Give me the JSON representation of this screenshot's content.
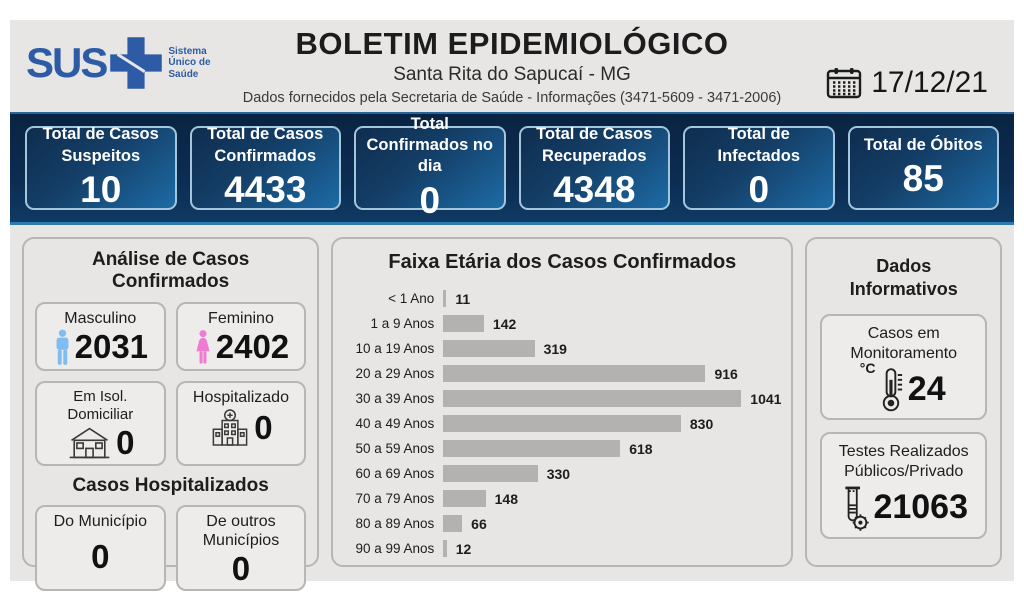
{
  "header": {
    "logo_text": "SUS",
    "logo_tagline": "Sistema Único de Saúde",
    "title": "BOLETIM EPIDEMIOLÓGICO",
    "subtitle": "Santa Rita do Sapucaí - MG",
    "info_line": "Dados fornecidos pela Secretaria de Saúde - Informações (3471-5609 - 3471-2006)",
    "date": "17/12/21"
  },
  "stats": [
    {
      "label": "Total de Casos Suspeitos",
      "value": "10"
    },
    {
      "label": "Total de Casos Confirmados",
      "value": "4433"
    },
    {
      "label": "Total Confirmados no dia",
      "value": "0"
    },
    {
      "label": "Total de Casos Recuperados",
      "value": "4348"
    },
    {
      "label": "Total de Infectados",
      "value": "0"
    },
    {
      "label": "Total de Óbitos",
      "value": "85"
    }
  ],
  "analysis": {
    "title": "Análise de Casos Confirmados",
    "cards": [
      {
        "label": "Masculino",
        "value": "2031",
        "icon": "male-icon"
      },
      {
        "label": "Feminino",
        "value": "2402",
        "icon": "female-icon"
      },
      {
        "label": "Em Isol. Domiciliar",
        "value": "0",
        "icon": "house-icon"
      },
      {
        "label": "Hospitalizado",
        "value": "0",
        "icon": "hospital-icon"
      }
    ],
    "hospitalized": {
      "title": "Casos Hospitalizados",
      "cards": [
        {
          "label": "Do Município",
          "value": "0"
        },
        {
          "label": "De outros Municípios",
          "value": "0"
        }
      ]
    }
  },
  "chart_data": {
    "type": "bar",
    "orientation": "horizontal",
    "title": "Faixa Etária dos Casos Confirmados",
    "categories": [
      "< 1 Ano",
      "1 a 9 Anos",
      "10 a 19 Anos",
      "20 a 29 Anos",
      "30 a 39 Anos",
      "40 a 49 Anos",
      "50 a 59 Anos",
      "60 a 69 Anos",
      "70 a 79 Anos",
      "80 a 89 Anos",
      "90 a 99 Anos"
    ],
    "values": [
      11,
      142,
      319,
      916,
      1041,
      830,
      618,
      330,
      148,
      66,
      12
    ],
    "xlim": [
      0,
      1041
    ],
    "bar_color": "#b4b2b0",
    "grid": false,
    "legend": false,
    "data_labels": "right of bars"
  },
  "informative": {
    "title": "Dados Informativos",
    "cards": [
      {
        "label": "Casos em Monitoramento",
        "value": "24",
        "icon": "thermometer-icon",
        "unit": "°C"
      },
      {
        "label": "Testes Realizados Públicos/Privado",
        "value": "21063",
        "icon": "test-tube-icon"
      }
    ]
  },
  "colors": {
    "sus_blue": "#2d5ba6",
    "band_navy": "#0a2342",
    "stat_card_blue": "#1d6ba5",
    "stat_card_border": "#a3c6dc",
    "male_icon": "#7fbcf2",
    "female_icon": "#f07cd2",
    "bar_gray": "#b4b2b0",
    "panel_bg": "#e7e6e4"
  }
}
